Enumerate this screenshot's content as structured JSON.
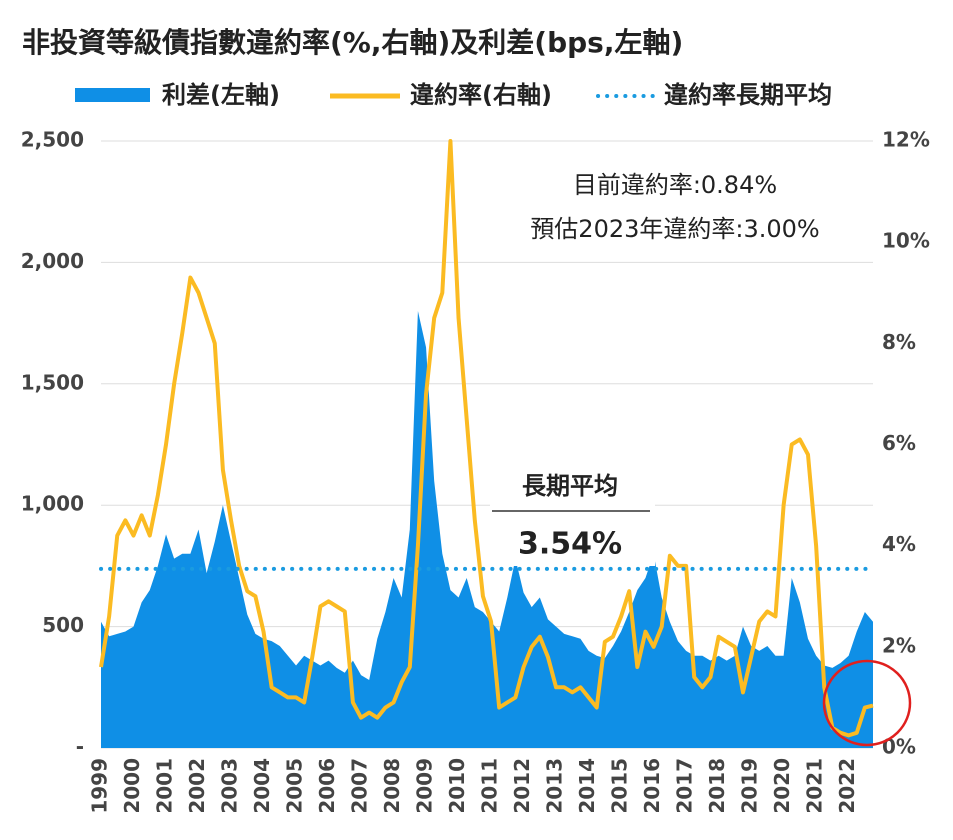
{
  "chart_data": {
    "type": "area-line",
    "title": "非投資等級債指數違約率(%,右軸)及利差(bps,左軸)",
    "x": [
      1999,
      1999.25,
      1999.5,
      1999.75,
      2000,
      2000.25,
      2000.5,
      2000.75,
      2001,
      2001.25,
      2001.5,
      2001.75,
      2002,
      2002.25,
      2002.5,
      2002.75,
      2003,
      2003.25,
      2003.5,
      2003.75,
      2004,
      2004.25,
      2004.5,
      2004.75,
      2005,
      2005.25,
      2005.5,
      2005.75,
      2006,
      2006.25,
      2006.5,
      2006.75,
      2007,
      2007.25,
      2007.5,
      2007.75,
      2008,
      2008.25,
      2008.5,
      2008.75,
      2009,
      2009.25,
      2009.5,
      2009.75,
      2010,
      2010.25,
      2010.5,
      2010.75,
      2011,
      2011.25,
      2011.5,
      2011.75,
      2012,
      2012.25,
      2012.5,
      2012.75,
      2013,
      2013.25,
      2013.5,
      2013.75,
      2014,
      2014.25,
      2014.5,
      2014.75,
      2015,
      2015.25,
      2015.5,
      2015.75,
      2016,
      2016.25,
      2016.5,
      2016.75,
      2017,
      2017.25,
      2017.5,
      2017.75,
      2018,
      2018.25,
      2018.5,
      2018.75,
      2019,
      2019.25,
      2019.5,
      2019.75,
      2020,
      2020.25,
      2020.5,
      2020.75,
      2021,
      2021.25,
      2021.5,
      2021.75,
      2022,
      2022.25,
      2022.5,
      2022.75
    ],
    "series": [
      {
        "name": "利差(左軸)",
        "color": "#0f8fe6",
        "axis": "y",
        "values": [
          520,
          460,
          470,
          480,
          500,
          600,
          650,
          750,
          880,
          780,
          800,
          800,
          900,
          720,
          850,
          1000,
          850,
          700,
          550,
          470,
          450,
          440,
          420,
          380,
          340,
          380,
          360,
          340,
          360,
          330,
          310,
          360,
          300,
          280,
          450,
          560,
          700,
          620,
          900,
          1800,
          1650,
          1100,
          800,
          650,
          620,
          700,
          580,
          560,
          520,
          480,
          620,
          780,
          640,
          580,
          620,
          530,
          500,
          470,
          460,
          450,
          400,
          380,
          370,
          420,
          480,
          560,
          650,
          700,
          800,
          620,
          520,
          440,
          400,
          380,
          380,
          360,
          380,
          360,
          380,
          500,
          420,
          400,
          420,
          380,
          380,
          700,
          600,
          450,
          380,
          340,
          330,
          350,
          380,
          480,
          560,
          520
        ]
      },
      {
        "name": "違約率(右軸)",
        "color": "#fbbb22",
        "axis": "y2",
        "values": [
          1.6,
          2.6,
          4.2,
          4.5,
          4.2,
          4.6,
          4.2,
          5.0,
          6.0,
          7.2,
          8.2,
          9.3,
          9.0,
          8.5,
          8.0,
          5.5,
          4.5,
          3.6,
          3.1,
          3.0,
          2.3,
          1.2,
          1.1,
          1.0,
          1.0,
          0.9,
          1.8,
          2.8,
          2.9,
          2.8,
          2.7,
          0.9,
          0.6,
          0.7,
          0.6,
          0.8,
          0.9,
          1.3,
          1.6,
          4.0,
          7.0,
          8.5,
          9.0,
          12.0,
          8.5,
          6.5,
          4.5,
          3.0,
          2.5,
          0.8,
          0.9,
          1.0,
          1.6,
          2.0,
          2.2,
          1.8,
          1.2,
          1.2,
          1.1,
          1.2,
          1.0,
          0.8,
          2.1,
          2.2,
          2.6,
          3.1,
          1.6,
          2.3,
          2.0,
          2.4,
          3.8,
          3.6,
          3.6,
          1.4,
          1.2,
          1.4,
          2.2,
          2.1,
          2.0,
          1.1,
          1.8,
          2.5,
          2.7,
          2.6,
          4.8,
          6.0,
          6.1,
          5.8,
          4.0,
          1.2,
          0.4,
          0.3,
          0.25,
          0.3,
          0.8,
          0.84
        ]
      }
    ],
    "average": {
      "name": "違約率長期平均",
      "color": "#1a9be0",
      "axis": "y2",
      "value": 3.54,
      "value_label": "3.54%"
    },
    "annotations": [
      "目前違約率:0.84%",
      "預估2023年違約率:3.00%",
      "長期平均"
    ],
    "xlim": [
      1999,
      2022.75
    ],
    "xticks": [
      1999,
      2000,
      2001,
      2002,
      2003,
      2004,
      2005,
      2006,
      2007,
      2008,
      2009,
      2010,
      2011,
      2012,
      2013,
      2014,
      2015,
      2016,
      2017,
      2018,
      2019,
      2020,
      2021,
      2022
    ],
    "ylim": [
      0,
      2500
    ],
    "yticks": [
      {
        "value": 0,
        "label": "-"
      },
      500,
      {
        "value": 1000,
        "label": "1,000"
      },
      {
        "value": 1500,
        "label": "1,500"
      },
      {
        "value": 2000,
        "label": "2,000"
      },
      {
        "value": 2500,
        "label": "2,500"
      }
    ],
    "y2lim": [
      0,
      12
    ],
    "y2ticks": [
      {
        "value": 0,
        "label": "0%"
      },
      {
        "value": 2,
        "label": "2%"
      },
      {
        "value": 4,
        "label": "4%"
      },
      {
        "value": 6,
        "label": "6%"
      },
      {
        "value": 8,
        "label": "8%"
      },
      {
        "value": 10,
        "label": "10%"
      },
      {
        "value": 12,
        "label": "12%"
      }
    ],
    "grid": true
  }
}
